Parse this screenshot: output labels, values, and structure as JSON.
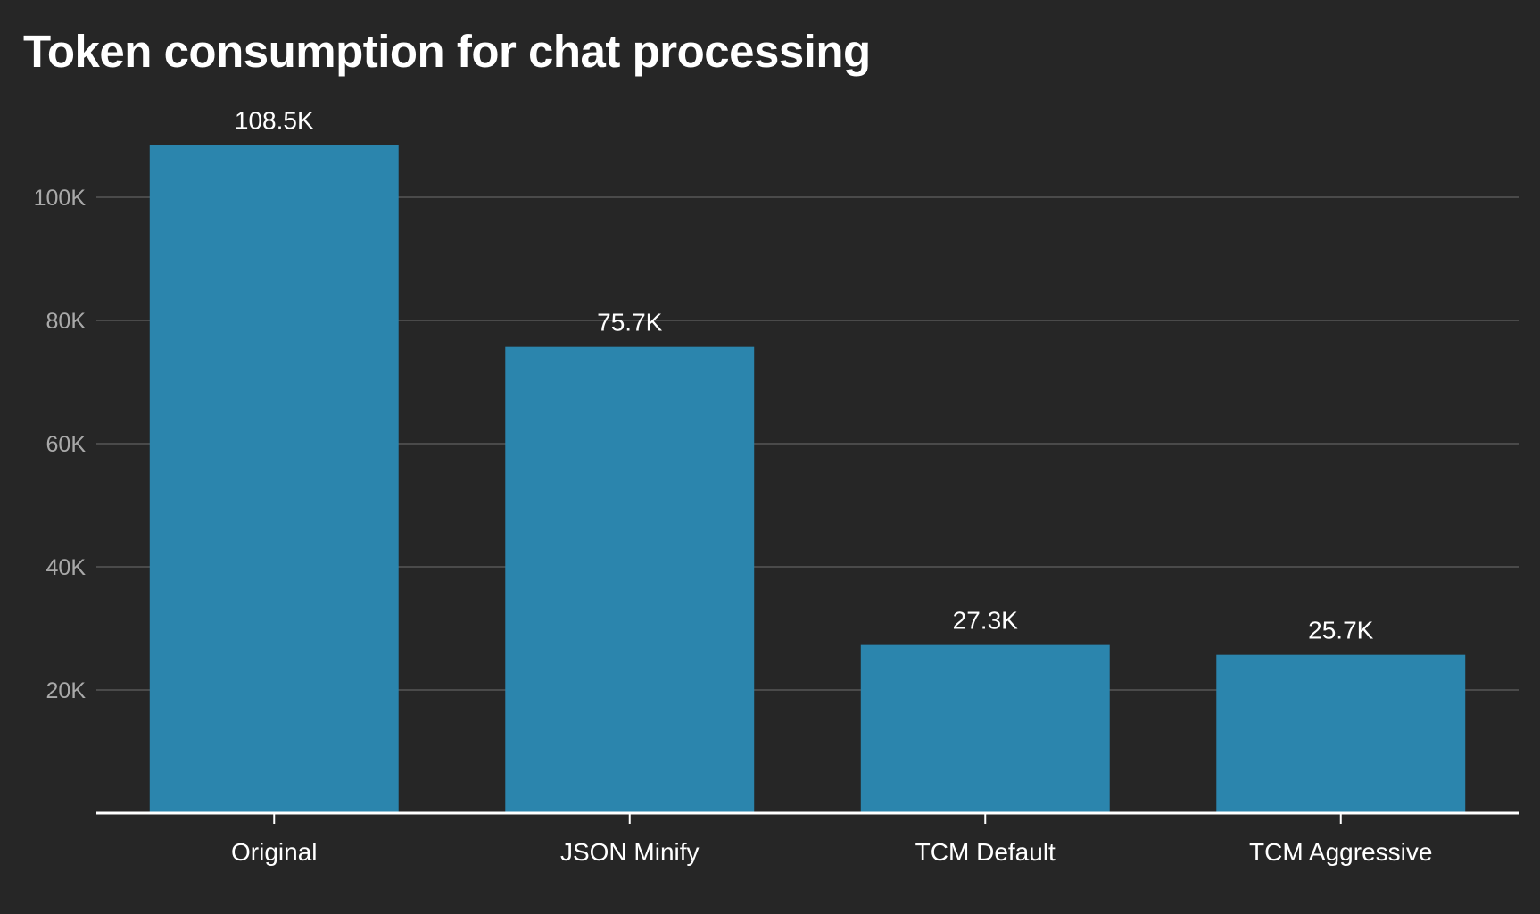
{
  "title": "Token consumption for chat processing",
  "colors": {
    "background": "#262626",
    "bar": "#2b85ad",
    "grid": "#4a4a4a",
    "axis": "#ffffff"
  },
  "chart_data": {
    "type": "bar",
    "title": "Token consumption for chat processing",
    "xlabel": "",
    "ylabel": "",
    "categories": [
      "Original",
      "JSON Minify",
      "TCM Default",
      "TCM Aggressive"
    ],
    "values": [
      108500,
      75700,
      27300,
      25700
    ],
    "value_labels": [
      "108.5K",
      "75.7K",
      "27.3K",
      "25.7K"
    ],
    "yticks": [
      20000,
      40000,
      60000,
      80000,
      100000
    ],
    "ytick_labels": [
      "20K",
      "40K",
      "60K",
      "80K",
      "100K"
    ],
    "ylim": [
      0,
      120000
    ],
    "grid": true,
    "legend": "none"
  }
}
